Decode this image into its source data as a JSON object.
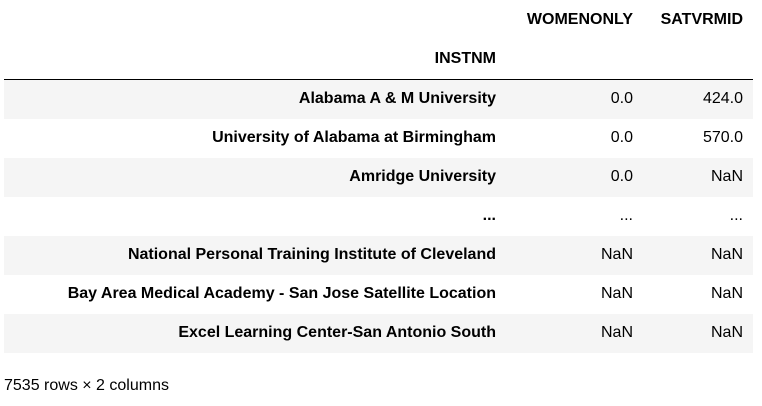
{
  "columns": [
    "WOMENONLY",
    "SATVRMID"
  ],
  "index_name": "INSTNM",
  "rows": [
    {
      "name": "Alabama A & M University",
      "values": [
        "0.0",
        "424.0"
      ]
    },
    {
      "name": "University of Alabama at Birmingham",
      "values": [
        "0.0",
        "570.0"
      ]
    },
    {
      "name": "Amridge University",
      "values": [
        "0.0",
        "NaN"
      ]
    },
    {
      "name": "...",
      "values": [
        "...",
        "..."
      ]
    },
    {
      "name": "National Personal Training Institute of Cleveland",
      "values": [
        "NaN",
        "NaN"
      ]
    },
    {
      "name": "Bay Area Medical Academy - San Jose Satellite Location",
      "values": [
        "NaN",
        "NaN"
      ]
    },
    {
      "name": "Excel Learning Center-San Antonio South",
      "values": [
        "NaN",
        "NaN"
      ]
    }
  ],
  "footer": "7535 rows × 2 columns"
}
